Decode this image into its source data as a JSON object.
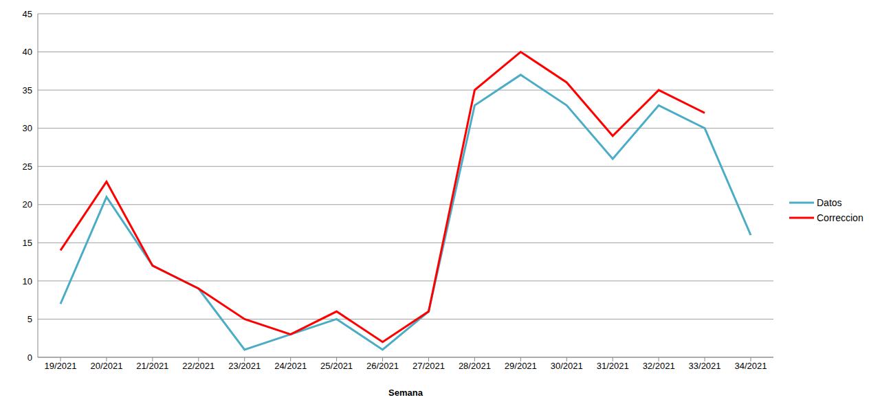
{
  "chart_data": {
    "type": "line",
    "x_label": "Semana",
    "categories": [
      "19/2021",
      "20/2021",
      "21/2021",
      "22/2021",
      "23/2021",
      "24/2021",
      "25/2021",
      "26/2021",
      "27/2021",
      "28/2021",
      "29/2021",
      "30/2021",
      "31/2021",
      "32/2021",
      "33/2021",
      "34/2021"
    ],
    "series": [
      {
        "name": "Datos",
        "color": "#4bacc6",
        "values": [
          7,
          21,
          12,
          9,
          1,
          3,
          5,
          1,
          6,
          33,
          37,
          33,
          26,
          33,
          30,
          16
        ]
      },
      {
        "name": "Correccion",
        "color": "#ff0000",
        "values": [
          14,
          23,
          12,
          9,
          5,
          3,
          6,
          2,
          6,
          35,
          40,
          36,
          29,
          35,
          32,
          null
        ]
      }
    ],
    "ylim": [
      0,
      45
    ],
    "yticks": [
      0,
      5,
      10,
      15,
      20,
      25,
      30,
      35,
      40,
      45
    ],
    "grid": true,
    "legend": "right"
  }
}
